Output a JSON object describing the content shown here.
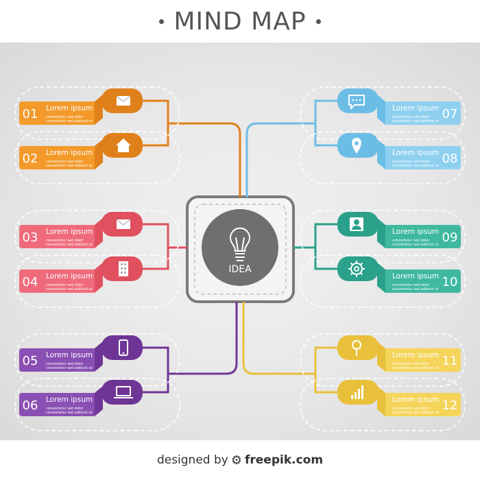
{
  "header": {
    "title": "MIND MAP"
  },
  "center": {
    "label": "IDEA"
  },
  "items": [
    {
      "num": "01",
      "title": "Lorem ipsum",
      "desc1": "consectetur sed dolor",
      "desc2": "consectetur sed adidunt ut",
      "color": "#f39a2b",
      "dark": "#e0801a",
      "icon": "envelope-icon",
      "side": "left"
    },
    {
      "num": "02",
      "title": "Lorem ipsum",
      "desc1": "consectetur sed dolor",
      "desc2": "consectetur sed adidunt ut",
      "color": "#f39a2b",
      "dark": "#e0801a",
      "icon": "home-icon",
      "side": "left"
    },
    {
      "num": "03",
      "title": "Lorem ipsum",
      "desc1": "consectetur sed dolor",
      "desc2": "consectetur sed adidunt ut",
      "color": "#ef6b7c",
      "dark": "#e0505f",
      "icon": "envelope-icon",
      "side": "left"
    },
    {
      "num": "04",
      "title": "Lorem ipsum",
      "desc1": "consectetur sed dolor",
      "desc2": "consectetur sed adidunt ut",
      "color": "#ef6b7c",
      "dark": "#e0505f",
      "icon": "building-icon",
      "side": "left"
    },
    {
      "num": "05",
      "title": "Lorem ipsum",
      "desc1": "consectetur sed dolor",
      "desc2": "consectetur sed adidunt ut",
      "color": "#8a4fb3",
      "dark": "#6f3596",
      "icon": "phone-icon",
      "side": "left"
    },
    {
      "num": "06",
      "title": "Lorem ipsum",
      "desc1": "consectetur sed dolor",
      "desc2": "consectetur sed adidunt ut",
      "color": "#8a4fb3",
      "dark": "#6f3596",
      "icon": "laptop-icon",
      "side": "left"
    },
    {
      "num": "07",
      "title": "Lorem ipsum",
      "desc1": "consectetur sed dolor",
      "desc2": "consectetur sed adidunt ut",
      "color": "#8fd0f0",
      "dark": "#6cbde6",
      "icon": "chat-icon",
      "side": "right"
    },
    {
      "num": "08",
      "title": "Lorem ipsum",
      "desc1": "consectetur sed dolor",
      "desc2": "consectetur sed adidunt ut",
      "color": "#8fd0f0",
      "dark": "#6cbde6",
      "icon": "map-pin-icon",
      "side": "right"
    },
    {
      "num": "09",
      "title": "Lorem ipsum",
      "desc1": "consectetur sed dolor",
      "desc2": "consectetur sed adidunt ut",
      "color": "#3fb8a0",
      "dark": "#2ba08a",
      "icon": "user-icon",
      "side": "right"
    },
    {
      "num": "10",
      "title": "Lorem ipsum",
      "desc1": "consectetur sed dolor",
      "desc2": "consectetur sed adidunt ut",
      "color": "#3fb8a0",
      "dark": "#2ba08a",
      "icon": "gear-icon",
      "side": "right"
    },
    {
      "num": "11",
      "title": "Lorem ipsum",
      "desc1": "consectetur sed dolor",
      "desc2": "consectetur sed adidunt ut",
      "color": "#f5d45a",
      "dark": "#e9c03a",
      "icon": "search-icon",
      "side": "right"
    },
    {
      "num": "12",
      "title": "Lorem ipsum",
      "desc1": "consectetur sed dolor",
      "desc2": "consectetur sed adidunt ut",
      "color": "#f5d45a",
      "dark": "#e9c03a",
      "icon": "bar-chart-icon",
      "side": "right"
    }
  ],
  "footer": {
    "designed_by": "designed by",
    "brand": "freepik.com"
  }
}
